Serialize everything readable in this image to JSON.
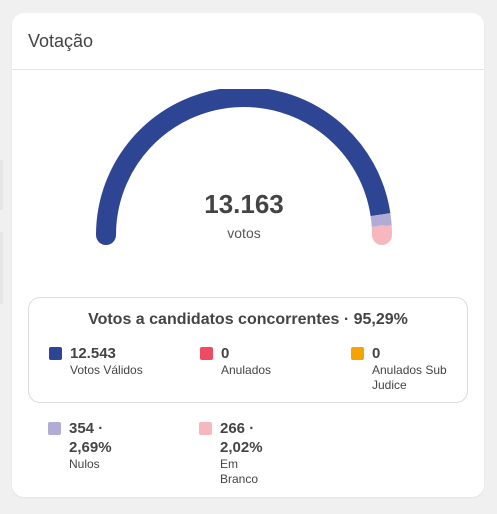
{
  "card": {
    "title": "Votação"
  },
  "gauge": {
    "total": "13.163",
    "unit": "votos",
    "segments": [
      {
        "name": "valid",
        "value": 12543,
        "color": "#2e4594"
      },
      {
        "name": "nulos",
        "value": 354,
        "color": "#b1acd6"
      },
      {
        "name": "branco",
        "value": 266,
        "color": "#f6b8be"
      }
    ]
  },
  "concorrentes": {
    "title": "Votos a candidatos concorrentes · 95,29%",
    "items": [
      {
        "value": "12.543",
        "label": "Votos Válidos",
        "color": "#2e4594"
      },
      {
        "value": "0",
        "label": "Anulados",
        "color": "#ef4a63"
      },
      {
        "value": "0",
        "label": "Anulados Sub Judice",
        "color": "#f5a300"
      }
    ]
  },
  "others": [
    {
      "value": "354 · 2,69%",
      "label": "Nulos",
      "color": "#b1acd6"
    },
    {
      "value": "266 · 2,02%",
      "label": "Em Branco",
      "color": "#f6b8be"
    }
  ]
}
